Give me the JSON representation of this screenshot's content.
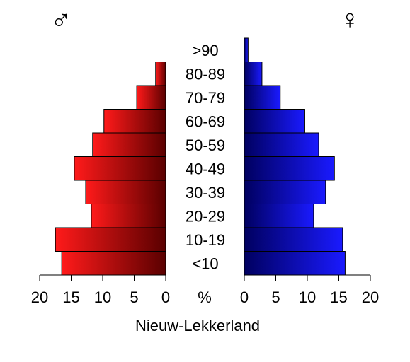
{
  "chart_data": {
    "type": "bar",
    "subtype": "population-pyramid",
    "title": "Nieuw-Lekkerland",
    "unit_label": "%",
    "male_symbol": "♂",
    "female_symbol": "♀",
    "categories": [
      "<10",
      "10-19",
      "20-29",
      "30-39",
      "40-49",
      "50-59",
      "60-69",
      "70-79",
      "80-89",
      ">90"
    ],
    "series": [
      {
        "values": [
          16.5,
          17.5,
          11.8,
          12.7,
          14.5,
          11.6,
          9.8,
          4.6,
          1.6,
          0.0
        ],
        "color_light": "#ff1a1a",
        "color_dark": "#5a0000"
      },
      {
        "values": [
          16.0,
          15.6,
          11.0,
          12.9,
          14.3,
          11.8,
          9.6,
          5.7,
          2.8,
          0.6
        ],
        "color_light": "#1a1aff",
        "color_dark": "#000060"
      }
    ],
    "axis_ticks": [
      "20",
      "15",
      "10",
      "5",
      "0"
    ],
    "xlim": [
      0,
      20
    ]
  }
}
